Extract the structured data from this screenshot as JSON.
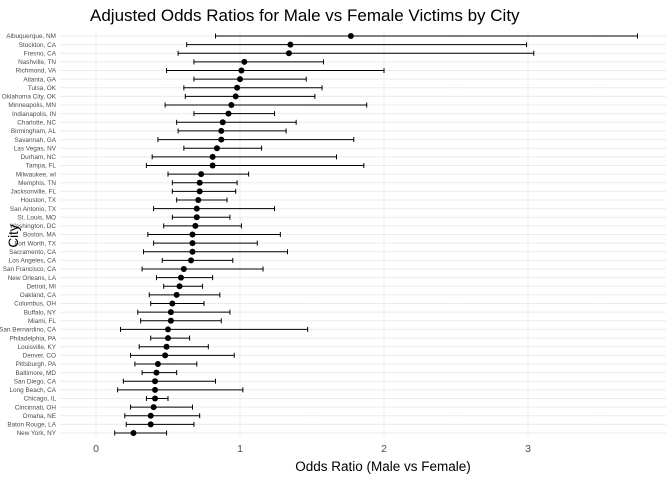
{
  "chart_data": {
    "type": "scatter",
    "title": "Adjusted Odds Ratios for Male vs Female Victims by City",
    "xlabel": "Odds Ratio (Male vs Female)",
    "ylabel": "City",
    "xlim": [
      -0.09,
      3.86
    ],
    "xticks": [
      0,
      1,
      2,
      3
    ],
    "grid": true,
    "error_bars": true,
    "cities": [
      "Albuquerque, NM",
      "Stockton, CA",
      "Fresno, CA",
      "Nashville, TN",
      "Richmond, VA",
      "Atlanta, GA",
      "Tulsa, OK",
      "Oklahoma City, OK",
      "Minneapolis, MN",
      "Indianapolis, IN",
      "Charlotte, NC",
      "Birmingham, AL",
      "Savannah, GA",
      "Las Vegas, NV",
      "Durham, NC",
      "Tampa, FL",
      "Milwaukee, wI",
      "Memphis, TN",
      "Jacksonville, FL",
      "Houston, TX",
      "San Antonio, TX",
      "St. Louis, MO",
      "Washington, DC",
      "Boston, MA",
      "Fort Worth, TX",
      "Sacramento, CA",
      "Los Angeles, CA",
      "San Francisco, CA",
      "New Orleans, LA",
      "Detroit, MI",
      "Oakland, CA",
      "Columbus, OH",
      "Buffalo, NY",
      "Miami, FL",
      "San Bernardino, CA",
      "Philadelphia, PA",
      "Louisville, KY",
      "Denver, CO",
      "Pittsburgh, PA",
      "Baltimore, MD",
      "San Diego, CA",
      "Long Beach, CA",
      "Chicago, IL",
      "Cincinnati, OH",
      "Omaha, NE",
      "Baton Rouge, LA",
      "New York, NY"
    ],
    "or": [
      1.77,
      1.35,
      1.34,
      1.03,
      1.01,
      1.0,
      0.98,
      0.97,
      0.94,
      0.92,
      0.88,
      0.87,
      0.87,
      0.84,
      0.81,
      0.81,
      0.73,
      0.72,
      0.72,
      0.71,
      0.7,
      0.7,
      0.69,
      0.67,
      0.67,
      0.67,
      0.66,
      0.61,
      0.59,
      0.58,
      0.56,
      0.53,
      0.52,
      0.52,
      0.5,
      0.5,
      0.49,
      0.48,
      0.43,
      0.42,
      0.41,
      0.41,
      0.41,
      0.4,
      0.38,
      0.38,
      0.26
    ],
    "lower": [
      0.83,
      0.63,
      0.57,
      0.68,
      0.49,
      0.68,
      0.61,
      0.62,
      0.48,
      0.68,
      0.56,
      0.57,
      0.43,
      0.61,
      0.39,
      0.35,
      0.5,
      0.53,
      0.53,
      0.56,
      0.4,
      0.53,
      0.47,
      0.36,
      0.4,
      0.33,
      0.46,
      0.32,
      0.42,
      0.47,
      0.37,
      0.38,
      0.29,
      0.31,
      0.17,
      0.38,
      0.3,
      0.24,
      0.27,
      0.32,
      0.19,
      0.15,
      0.35,
      0.24,
      0.2,
      0.21,
      0.13
    ],
    "upper": [
      3.76,
      2.99,
      3.04,
      1.58,
      2.0,
      1.46,
      1.57,
      1.52,
      1.88,
      1.24,
      1.39,
      1.32,
      1.79,
      1.15,
      1.67,
      1.86,
      1.06,
      0.98,
      0.97,
      0.91,
      1.24,
      0.93,
      1.01,
      1.28,
      1.12,
      1.33,
      0.95,
      1.16,
      0.81,
      0.74,
      0.86,
      0.75,
      0.93,
      0.87,
      1.47,
      0.65,
      0.78,
      0.96,
      0.7,
      0.56,
      0.83,
      1.02,
      0.5,
      0.67,
      0.72,
      0.68,
      0.49
    ]
  }
}
